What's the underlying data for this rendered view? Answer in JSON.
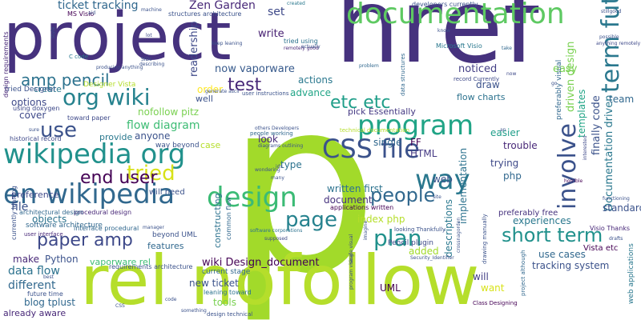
{
  "words": [
    {
      "text": "p",
      "color": "#a2da2a"
    },
    {
      "text": "href",
      "color": "#46327e"
    },
    {
      "text": "project",
      "color": "#46327e"
    },
    {
      "text": "rel nofollow",
      "color": "#b5de2b"
    },
    {
      "text": "documentation",
      "color": "#5ec962"
    },
    {
      "text": "design",
      "color": "#3bbb75"
    },
    {
      "text": "en wikipedia",
      "color": "#31688e"
    },
    {
      "text": "wikipedia org",
      "color": "#21918c"
    },
    {
      "text": "org wiki",
      "color": "#26828e"
    },
    {
      "text": "program",
      "color": "#20a486"
    },
    {
      "text": "way",
      "color": "#2a788e"
    },
    {
      "text": "CSS file",
      "color": "#3b528b"
    },
    {
      "text": "term future",
      "color": "#2a788e"
    },
    {
      "text": "involve",
      "color": "#3b528b"
    },
    {
      "text": "tried",
      "color": "#d8e219"
    },
    {
      "text": "page",
      "color": "#26828e"
    },
    {
      "text": "plan",
      "color": "#21918c"
    },
    {
      "text": "people",
      "color": "#31688e"
    },
    {
      "text": "short term",
      "color": "#21918c"
    },
    {
      "text": "use",
      "color": "#3b528b"
    },
    {
      "text": "end user",
      "color": "#440154"
    },
    {
      "text": "paper amp",
      "color": "#3e4989"
    },
    {
      "text": "amp pencil",
      "color": "#2c728e"
    },
    {
      "text": "etc etc",
      "color": "#1f9e89"
    },
    {
      "text": "test",
      "color": "#482878"
    },
    {
      "text": "Zen Garden",
      "color": "#482878"
    },
    {
      "text": "ticket tracking",
      "color": "#31688e"
    },
    {
      "text": "set",
      "color": "#3e4989"
    },
    {
      "text": "write",
      "color": "#482173"
    },
    {
      "text": "now vaporware",
      "color": "#375a8c"
    },
    {
      "text": "actions",
      "color": "#2a788e"
    },
    {
      "text": "advance",
      "color": "#20a486"
    },
    {
      "text": "flow diagram",
      "color": "#3dbc74"
    },
    {
      "text": "nofollow pitz",
      "color": "#7ad151"
    },
    {
      "text": "anyone",
      "color": "#3b528b"
    },
    {
      "text": "look",
      "color": "#472c7a"
    },
    {
      "text": "type",
      "color": "#2c728e"
    },
    {
      "text": "single",
      "color": "#31688e"
    },
    {
      "text": "FF",
      "color": "#440154"
    },
    {
      "text": "HTML",
      "color": "#443983"
    },
    {
      "text": "written first",
      "color": "#2c728e"
    },
    {
      "text": "document",
      "color": "#46327e"
    },
    {
      "text": "index php",
      "color": "#b5de2b"
    },
    {
      "text": "added",
      "color": "#a2da2a"
    },
    {
      "text": "descriptions",
      "color": "#2a788e"
    },
    {
      "text": "implementation",
      "color": "#2c728e"
    },
    {
      "text": "web",
      "color": "#3b528b"
    },
    {
      "text": "pick Essentially",
      "color": "#443983"
    },
    {
      "text": "noticed",
      "color": "#433e85"
    },
    {
      "text": "easy",
      "color": "#7ad151"
    },
    {
      "text": "draw",
      "color": "#3b528b"
    },
    {
      "text": "flow charts",
      "color": "#2c728e"
    },
    {
      "text": "easier",
      "color": "#1f9e89"
    },
    {
      "text": "trouble",
      "color": "#482878"
    },
    {
      "text": "trying",
      "color": "#3e4989"
    },
    {
      "text": "php",
      "color": "#31688e"
    },
    {
      "text": "driven design",
      "color": "#7ad151"
    },
    {
      "text": "Documentation driven",
      "color": "#2a788e"
    },
    {
      "text": "finally code",
      "color": "#3b528b"
    },
    {
      "text": "templates",
      "color": "#20a486"
    },
    {
      "text": "preferably visual",
      "color": "#31688e"
    },
    {
      "text": "team",
      "color": "#31688e"
    },
    {
      "text": "standard",
      "color": "#3b528b"
    },
    {
      "text": "experiences",
      "color": "#2a788e"
    },
    {
      "text": "preferably free",
      "color": "#46327e"
    },
    {
      "text": "Visio Thanks",
      "color": "#482878"
    },
    {
      "text": "Vista etc",
      "color": "#440154"
    },
    {
      "text": "use cases",
      "color": "#31688e"
    },
    {
      "text": "tracking system",
      "color": "#3b528b"
    },
    {
      "text": "will",
      "color": "#433e85"
    },
    {
      "text": "want",
      "color": "#d8e219"
    },
    {
      "text": "UML",
      "color": "#440154"
    },
    {
      "text": "Pencil plugin",
      "color": "#3e4989"
    },
    {
      "text": "web applications",
      "color": "#2a788e"
    },
    {
      "text": "wiki Design_document",
      "color": "#440154"
    },
    {
      "text": "vaporware rel",
      "color": "#3dbc74"
    },
    {
      "text": "new ticket",
      "color": "#3b528b"
    },
    {
      "text": "tools",
      "color": "#7ad151"
    },
    {
      "text": "current stage",
      "color": "#31688e"
    },
    {
      "text": "leaning toward",
      "color": "#2c728e"
    },
    {
      "text": "features",
      "color": "#31688e"
    },
    {
      "text": "beyond UML",
      "color": "#3b528b"
    },
    {
      "text": "constructing",
      "color": "#2c728e"
    },
    {
      "text": "common flow",
      "color": "#31688e"
    },
    {
      "text": "data flow",
      "color": "#2c728e"
    },
    {
      "text": "different",
      "color": "#31688e"
    },
    {
      "text": "make",
      "color": "#482878"
    },
    {
      "text": "Python",
      "color": "#3b528b"
    },
    {
      "text": "blog tplust",
      "color": "#31688e"
    },
    {
      "text": "already aware",
      "color": "#482878"
    },
    {
      "text": "objects",
      "color": "#2c728e"
    },
    {
      "text": "file",
      "color": "#3b528b"
    },
    {
      "text": "preference",
      "color": "#3e4989"
    },
    {
      "text": "options",
      "color": "#3e4989"
    },
    {
      "text": "cover",
      "color": "#3e4989"
    },
    {
      "text": "create",
      "color": "#2a788e"
    },
    {
      "text": "readership",
      "color": "#3e4989"
    },
    {
      "text": "order",
      "color": "#fde725"
    },
    {
      "text": "well",
      "color": "#3b528b"
    },
    {
      "text": "case",
      "color": "#b5de2b"
    },
    {
      "text": "will need",
      "color": "#3b528b"
    },
    {
      "text": "provide",
      "color": "#2a788e"
    },
    {
      "text": "way beyond",
      "color": "#3b528b"
    },
    {
      "text": "toward paper",
      "color": "#3e4989"
    },
    {
      "text": "Designer Vista",
      "color": "#b5de2b"
    },
    {
      "text": "tried Designer",
      "color": "#3b528b"
    },
    {
      "text": "MS Visio",
      "color": "#440154"
    },
    {
      "text": "Microsoft Visio",
      "color": "#2a788e"
    },
    {
      "text": "developers currently",
      "color": "#3b528b"
    },
    {
      "text": "tried using",
      "color": "#2c728e"
    },
    {
      "text": "structures architecture",
      "color": "#3b528b"
    },
    {
      "text": "design requirements",
      "color": "#482878"
    },
    {
      "text": "software architecture",
      "color": "#31688e"
    },
    {
      "text": "future time",
      "color": "#3b528b"
    },
    {
      "text": "using doxygen",
      "color": "#3e4989"
    },
    {
      "text": "historical record",
      "color": "#3e4989"
    },
    {
      "text": "currently leaning",
      "color": "#3b528b"
    },
    {
      "text": "procedural design",
      "color": "#482878"
    },
    {
      "text": "architectural design",
      "color": "#31688e"
    },
    {
      "text": "requirements architecture",
      "color": "#3b528b"
    },
    {
      "text": "interface procedural",
      "color": "#31688e"
    },
    {
      "text": "applications written",
      "color": "#440154"
    },
    {
      "text": "people working",
      "color": "#31688e"
    },
    {
      "text": "others Developers",
      "color": "#3b528b"
    },
    {
      "text": "technical documentation",
      "color": "#b5de2b"
    },
    {
      "text": "Class Designing",
      "color": "#440154"
    },
    {
      "text": "project although",
      "color": "#31688e"
    },
    {
      "text": "drawing manually",
      "color": "#3b528b"
    },
    {
      "text": "user instructions",
      "color": "#3b528b"
    },
    {
      "text": "data structures",
      "color": "#31688e"
    },
    {
      "text": "record Currently",
      "color": "#3e4989"
    },
    {
      "text": "software corporations",
      "color": "#2c728e"
    },
    {
      "text": "looking Thankfully",
      "color": "#3b528b"
    },
    {
      "text": "design technical",
      "color": "#3b528b"
    },
    {
      "text": "user interface",
      "color": "#482878"
    },
    {
      "text": "Security_Identifier",
      "color": "#3b528b"
    },
    {
      "text": "anything remotely",
      "color": "#3e4989"
    },
    {
      "text": "C code",
      "color": "#2a788e"
    },
    {
      "text": "remotely good",
      "color": "#482878"
    },
    {
      "text": "keep leaning",
      "color": "#3b528b"
    },
    {
      "text": "generate ascii",
      "color": "#3b528b"
    },
    {
      "text": "producing anything",
      "color": "#3b528b"
    },
    {
      "text": "machine",
      "color": "#3b528b"
    },
    {
      "text": "created",
      "color": "#2a788e"
    },
    {
      "text": "aid",
      "color": "#3b528b"
    },
    {
      "text": "problem",
      "color": "#31688e"
    },
    {
      "text": "horrible",
      "color": "#440154"
    },
    {
      "text": "interested",
      "color": "#3e4989"
    },
    {
      "text": "functioning",
      "color": "#3b528b"
    },
    {
      "text": "take",
      "color": "#31688e"
    },
    {
      "text": "ids",
      "color": "#3b528b"
    },
    {
      "text": "supposed",
      "color": "#3e4989"
    },
    {
      "text": "imagine",
      "color": "#3b528b"
    },
    {
      "text": "manager",
      "color": "#3b528b"
    },
    {
      "text": "wondering",
      "color": "#3b528b"
    },
    {
      "text": "many",
      "color": "#3b528b"
    },
    {
      "text": "now",
      "color": "#3e4989"
    },
    {
      "text": "lot",
      "color": "#3e4989"
    },
    {
      "text": "SIDs",
      "color": "#3b528b"
    },
    {
      "text": "single visual",
      "color": "#3e4989"
    },
    {
      "text": "diagrams outlining",
      "color": "#3b528b"
    },
    {
      "text": "describing",
      "color": "#3b528b"
    },
    {
      "text": "sure",
      "color": "#3b528b"
    },
    {
      "text": "code",
      "color": "#3b528b"
    },
    {
      "text": "something",
      "color": "#3b528b"
    },
    {
      "text": "best",
      "color": "#3b528b"
    },
    {
      "text": "CSS",
      "color": "#3b528b"
    },
    {
      "text": "style",
      "color": "#3b528b"
    },
    {
      "text": "site",
      "color": "#3b528b"
    },
    {
      "text": "actually",
      "color": "#3b528b"
    },
    {
      "text": "know",
      "color": "#3b528b"
    },
    {
      "text": "an",
      "color": "#3b528b"
    },
    {
      "text": "go",
      "color": "#3b528b"
    },
    {
      "text": "crossnagorden",
      "color": "#3b528b"
    },
    {
      "text": "possible",
      "color": "#3b528b"
    },
    {
      "text": "drafts",
      "color": "#3b528b"
    },
    {
      "text": "stillgood",
      "color": "#3b528b"
    },
    {
      "text": "program visual",
      "color": "#3b528b"
    }
  ]
}
